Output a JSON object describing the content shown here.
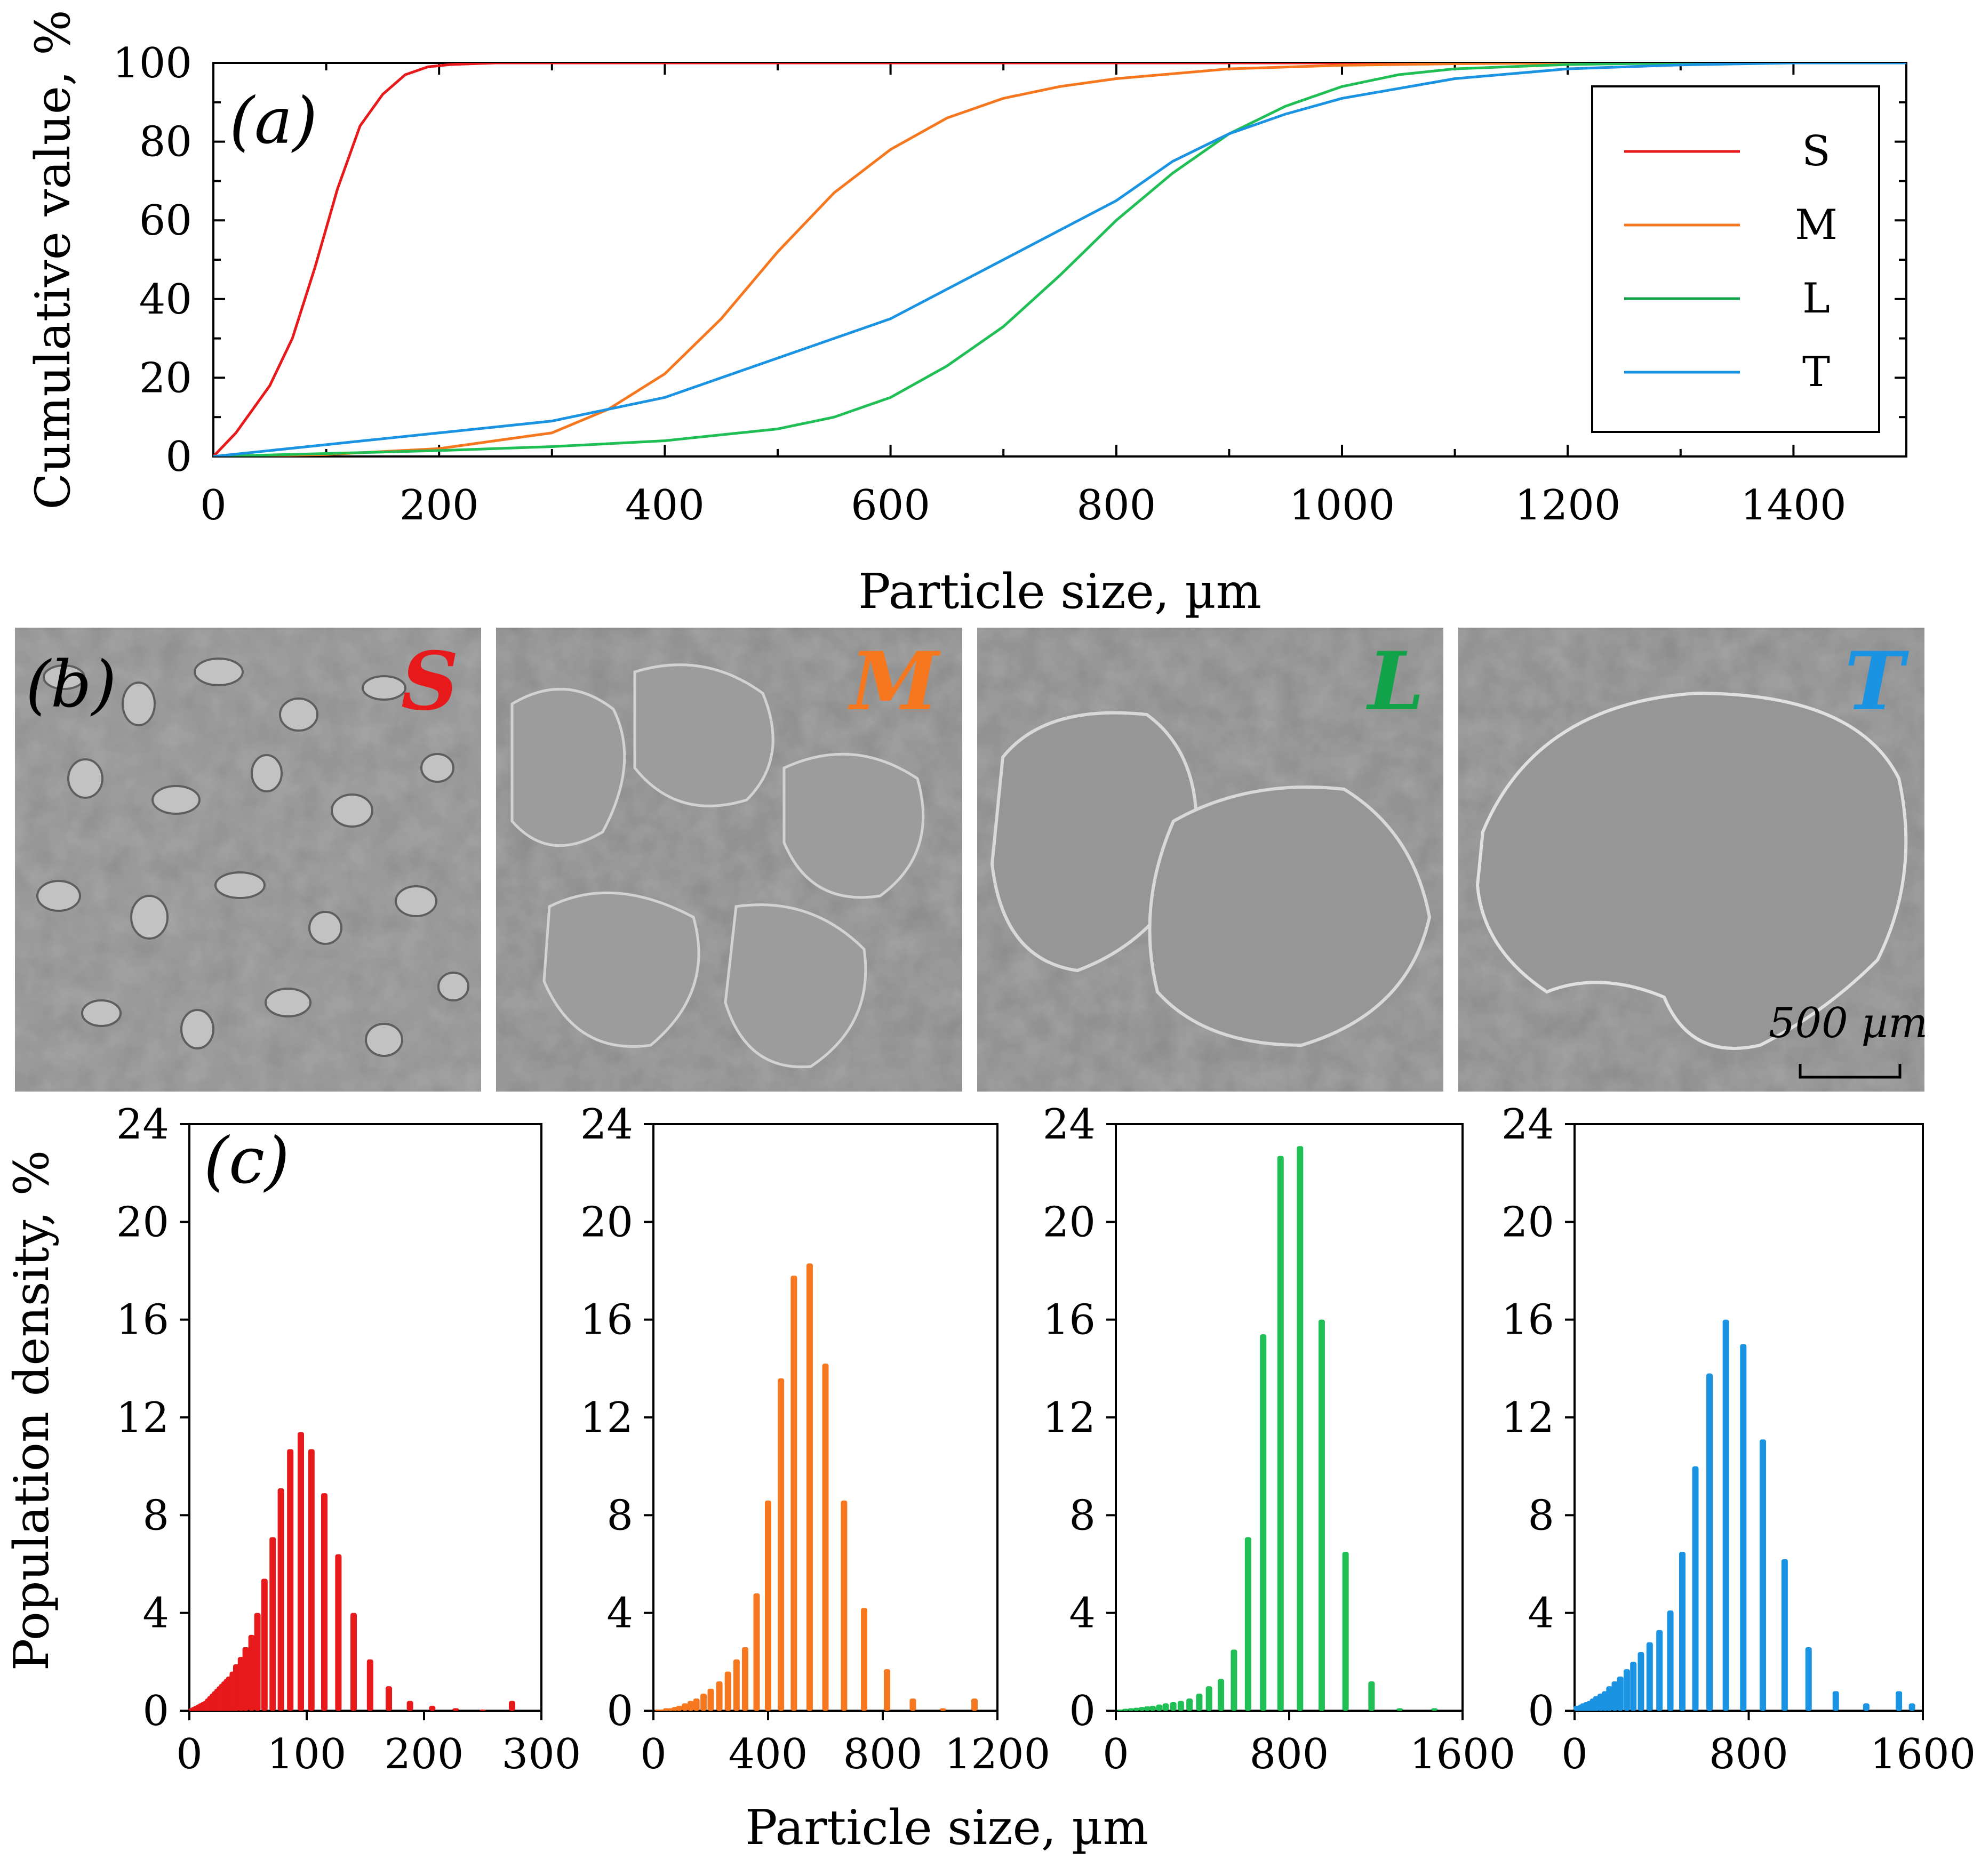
{
  "panel_labels": {
    "a": "(a)",
    "b": "(b)",
    "c": "(c)"
  },
  "colors": {
    "S": "#e8191b",
    "M": "#f7771e",
    "L": "#1fbf55",
    "T": "#1a93e3",
    "L_legend": "#12a34a"
  },
  "chart_data": [
    {
      "type": "line",
      "title": "",
      "xlabel": "Particle size, µm",
      "ylabel": "Cumulative value, %",
      "xlim": [
        0,
        1500
      ],
      "ylim": [
        0,
        100
      ],
      "xticks": [
        "0",
        "200",
        "400",
        "600",
        "800",
        "1000",
        "1200",
        "1400"
      ],
      "yticks": [
        "0",
        "20",
        "40",
        "60",
        "80",
        "100"
      ],
      "legend": [
        "S",
        "M",
        "L",
        "T"
      ],
      "legend_position": "top-right",
      "series": [
        {
          "name": "S",
          "x": [
            0,
            20,
            50,
            70,
            90,
            110,
            130,
            150,
            170,
            190,
            210,
            250,
            300,
            400,
            1500
          ],
          "y": [
            0,
            6,
            18,
            30,
            48,
            68,
            84,
            92,
            97,
            99,
            99.6,
            100,
            100,
            100,
            100
          ]
        },
        {
          "name": "M",
          "x": [
            0,
            100,
            200,
            300,
            350,
            400,
            450,
            500,
            550,
            600,
            650,
            700,
            750,
            800,
            900,
            1000,
            1100,
            1200,
            1300,
            1500
          ],
          "y": [
            0,
            0.5,
            2,
            6,
            12,
            21,
            35,
            52,
            67,
            78,
            86,
            91,
            94,
            96,
            98.5,
            99.4,
            99.8,
            100,
            100,
            100
          ]
        },
        {
          "name": "L",
          "x": [
            0,
            200,
            300,
            400,
            450,
            500,
            550,
            600,
            650,
            700,
            750,
            800,
            850,
            900,
            950,
            1000,
            1050,
            1100,
            1200,
            1300,
            1500
          ],
          "y": [
            0,
            1.5,
            2.5,
            4,
            5.5,
            7,
            10,
            15,
            23,
            33,
            46,
            60,
            72,
            82,
            89,
            94,
            97,
            98.5,
            99.6,
            100,
            100
          ]
        },
        {
          "name": "T",
          "x": [
            0,
            50,
            100,
            200,
            300,
            400,
            450,
            500,
            600,
            700,
            800,
            850,
            900,
            950,
            1000,
            1100,
            1200,
            1300,
            1400,
            1500
          ],
          "y": [
            0,
            1.5,
            3,
            6,
            9,
            15,
            20,
            25,
            35,
            50,
            65,
            75,
            82,
            87,
            91,
            96,
            98.5,
            99.5,
            100,
            100
          ]
        }
      ]
    },
    {
      "type": "bar",
      "series_name": "S",
      "xlabel": "",
      "ylabel": "Population density, %",
      "xlim": [
        0,
        300
      ],
      "ylim": [
        0,
        24
      ],
      "xticks": [
        "0",
        "100",
        "200",
        "300"
      ],
      "yticks": [
        "0",
        "4",
        "8",
        "12",
        "16",
        "20",
        "24"
      ],
      "x": [
        2,
        4,
        6,
        8,
        10,
        12,
        14,
        16,
        18,
        20,
        22,
        24,
        26,
        28,
        30,
        32,
        34,
        37,
        40,
        44,
        48,
        53,
        58,
        64,
        71,
        78,
        86,
        95,
        104,
        115,
        127,
        140,
        154,
        170,
        188,
        207,
        227,
        250,
        275
      ],
      "values": [
        0.1,
        0.15,
        0.2,
        0.25,
        0.3,
        0.35,
        0.4,
        0.5,
        0.6,
        0.7,
        0.8,
        0.9,
        1.0,
        1.1,
        1.2,
        1.3,
        1.4,
        1.6,
        1.9,
        2.2,
        2.6,
        3.1,
        4.0,
        5.4,
        7.1,
        9.1,
        10.7,
        11.4,
        10.7,
        8.9,
        6.4,
        4.0,
        2.1,
        1.0,
        0.4,
        0.2,
        0.1,
        0.05,
        0.4
      ]
    },
    {
      "type": "bar",
      "series_name": "M",
      "xlabel": "",
      "ylabel": "",
      "xlim": [
        0,
        1200
      ],
      "ylim": [
        0,
        24
      ],
      "xticks": [
        "0",
        "400",
        "800",
        "1200"
      ],
      "yticks": [
        "0",
        "4",
        "8",
        "12",
        "16",
        "20",
        "24"
      ],
      "x": [
        15,
        30,
        45,
        60,
        75,
        90,
        110,
        130,
        150,
        175,
        200,
        230,
        260,
        290,
        320,
        360,
        400,
        445,
        490,
        545,
        600,
        665,
        735,
        815,
        905,
        1010,
        1120
      ],
      "values": [
        0.05,
        0.05,
        0.1,
        0.1,
        0.15,
        0.2,
        0.3,
        0.4,
        0.5,
        0.7,
        0.9,
        1.2,
        1.6,
        2.1,
        2.6,
        4.8,
        8.6,
        13.6,
        17.8,
        18.3,
        14.2,
        8.6,
        4.2,
        1.7,
        0.5,
        0.1,
        0.5
      ]
    },
    {
      "type": "bar",
      "series_name": "L",
      "xlabel": "Particle size, µm",
      "ylabel": "",
      "xlim": [
        0,
        1600
      ],
      "ylim": [
        0,
        24
      ],
      "xticks": [
        "0",
        "800",
        "1600"
      ],
      "yticks": [
        "0",
        "4",
        "8",
        "12",
        "16",
        "20",
        "24"
      ],
      "x": [
        20,
        45,
        70,
        95,
        120,
        145,
        170,
        200,
        230,
        265,
        300,
        340,
        385,
        430,
        485,
        545,
        610,
        680,
        760,
        850,
        950,
        1060,
        1180,
        1310,
        1470
      ],
      "values": [
        0.05,
        0.08,
        0.1,
        0.12,
        0.15,
        0.18,
        0.2,
        0.25,
        0.3,
        0.35,
        0.4,
        0.5,
        0.7,
        1.0,
        1.3,
        2.5,
        7.1,
        15.4,
        22.7,
        23.1,
        16.0,
        6.5,
        1.2,
        0.1,
        0.1
      ]
    },
    {
      "type": "bar",
      "series_name": "T",
      "xlabel": "",
      "ylabel": "",
      "xlim": [
        0,
        1600
      ],
      "ylim": [
        0,
        24
      ],
      "xticks": [
        "0",
        "800",
        "1600"
      ],
      "yticks": [
        "0",
        "4",
        "8",
        "12",
        "16",
        "20",
        "24"
      ],
      "x": [
        10,
        20,
        30,
        40,
        55,
        70,
        85,
        100,
        120,
        140,
        160,
        185,
        210,
        240,
        270,
        305,
        345,
        390,
        440,
        495,
        555,
        620,
        695,
        775,
        865,
        965,
        1075,
        1200,
        1340,
        1490,
        1550
      ],
      "values": [
        0.2,
        0.2,
        0.25,
        0.3,
        0.35,
        0.4,
        0.5,
        0.6,
        0.7,
        0.8,
        1.0,
        1.2,
        1.4,
        1.7,
        2.0,
        2.4,
        2.8,
        3.3,
        4.1,
        6.5,
        10.0,
        13.8,
        16.0,
        15.0,
        11.1,
        6.2,
        2.6,
        0.8,
        0.3,
        0.8,
        0.3
      ]
    }
  ],
  "sem_images": [
    {
      "label": "S",
      "tone": "small flakes"
    },
    {
      "label": "M",
      "tone": "medium flakes"
    },
    {
      "label": "L",
      "tone": "large flakes"
    },
    {
      "label": "T",
      "tone": "very large flake"
    }
  ],
  "scale_bar": "500 µm"
}
